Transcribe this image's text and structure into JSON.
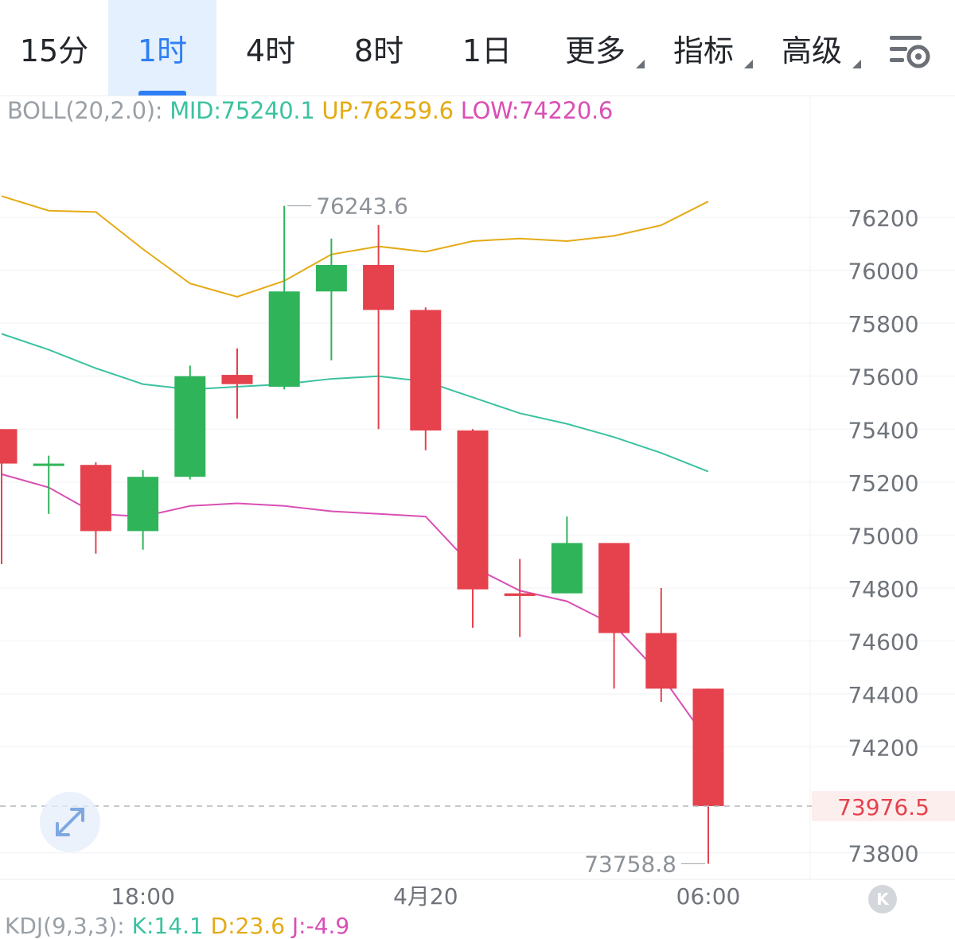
{
  "tabs": [
    {
      "label": "15分",
      "active": false
    },
    {
      "label": "1时",
      "active": true
    },
    {
      "label": "4时",
      "active": false
    },
    {
      "label": "8时",
      "active": false
    },
    {
      "label": "1日",
      "active": false
    },
    {
      "label": "更多",
      "active": false,
      "dropdown": true
    },
    {
      "label": "指标",
      "active": false,
      "dropdown": true
    },
    {
      "label": "高级",
      "active": false,
      "dropdown": true
    }
  ],
  "boll": {
    "label": "BOLL(20,2.0):",
    "mid": "MID:75240.1",
    "up": "UP:76259.6",
    "low": "LOW:74220.6"
  },
  "kdj": {
    "label": "KDJ(9,3,3):",
    "k": "K:14.1",
    "d": "D:23.6",
    "j": "J:-4.9"
  },
  "colors": {
    "up_candle": "#2fb45a",
    "down_candle": "#e5424d",
    "mid_line": "#3cc2a0",
    "upper_line": "#e5aa14",
    "lower_line": "#d94fb4",
    "accent": "#2e7ff5",
    "last_price_bg": "#fdeeee"
  },
  "chart_data": {
    "type": "candlestick",
    "interval": "1时",
    "y_ticks": [
      76200,
      76000,
      75800,
      75600,
      75400,
      75200,
      75000,
      74800,
      74600,
      74400,
      74200,
      73800
    ],
    "x_ticks": [
      "18:00",
      "4月20",
      "06:00"
    ],
    "ylim": [
      73700,
      76660
    ],
    "max_label": "76243.6",
    "min_label": "73758.8",
    "last_price": "73976.5",
    "candles": [
      {
        "open": 75400,
        "high": 75400,
        "low": 74890,
        "close": 75270
      },
      {
        "open": 75270,
        "high": 75300,
        "low": 75080,
        "close": 75270
      },
      {
        "open": 75265,
        "high": 75275,
        "low": 74930,
        "close": 75015
      },
      {
        "open": 75015,
        "high": 75245,
        "low": 74945,
        "close": 75220
      },
      {
        "open": 75220,
        "high": 75640,
        "low": 75210,
        "close": 75600
      },
      {
        "open": 75605,
        "high": 75705,
        "low": 75440,
        "close": 75570
      },
      {
        "open": 75560,
        "high": 76243.6,
        "low": 75550,
        "close": 75920
      },
      {
        "open": 75920,
        "high": 76120,
        "low": 75660,
        "close": 76020
      },
      {
        "open": 76020,
        "high": 76170,
        "low": 75400,
        "close": 75850
      },
      {
        "open": 75850,
        "high": 75860,
        "low": 75320,
        "close": 75395
      },
      {
        "open": 75395,
        "high": 75400,
        "low": 74650,
        "close": 74795
      },
      {
        "open": 74780,
        "high": 74910,
        "low": 74615,
        "close": 74770
      },
      {
        "open": 74780,
        "high": 75070,
        "low": 74780,
        "close": 74970
      },
      {
        "open": 74970,
        "high": 74970,
        "low": 74420,
        "close": 74630
      },
      {
        "open": 74630,
        "high": 74800,
        "low": 74370,
        "close": 74420
      },
      {
        "open": 74420,
        "high": 74420,
        "low": 73758.8,
        "close": 73976.5
      }
    ],
    "upper_band": [
      76280,
      76225,
      76220,
      76080,
      75950,
      75900,
      75960,
      76060,
      76090,
      76070,
      76110,
      76120,
      76110,
      76130,
      76170,
      76260
    ],
    "mid_band": [
      75760,
      75700,
      75630,
      75570,
      75550,
      75560,
      75570,
      75590,
      75600,
      75580,
      75520,
      75460,
      75420,
      75370,
      75310,
      75240
    ],
    "lower_band": [
      75230,
      75180,
      75080,
      75070,
      75110,
      75120,
      75110,
      75090,
      75080,
      75070,
      74880,
      74790,
      74750,
      74660,
      74470,
      74220
    ]
  }
}
